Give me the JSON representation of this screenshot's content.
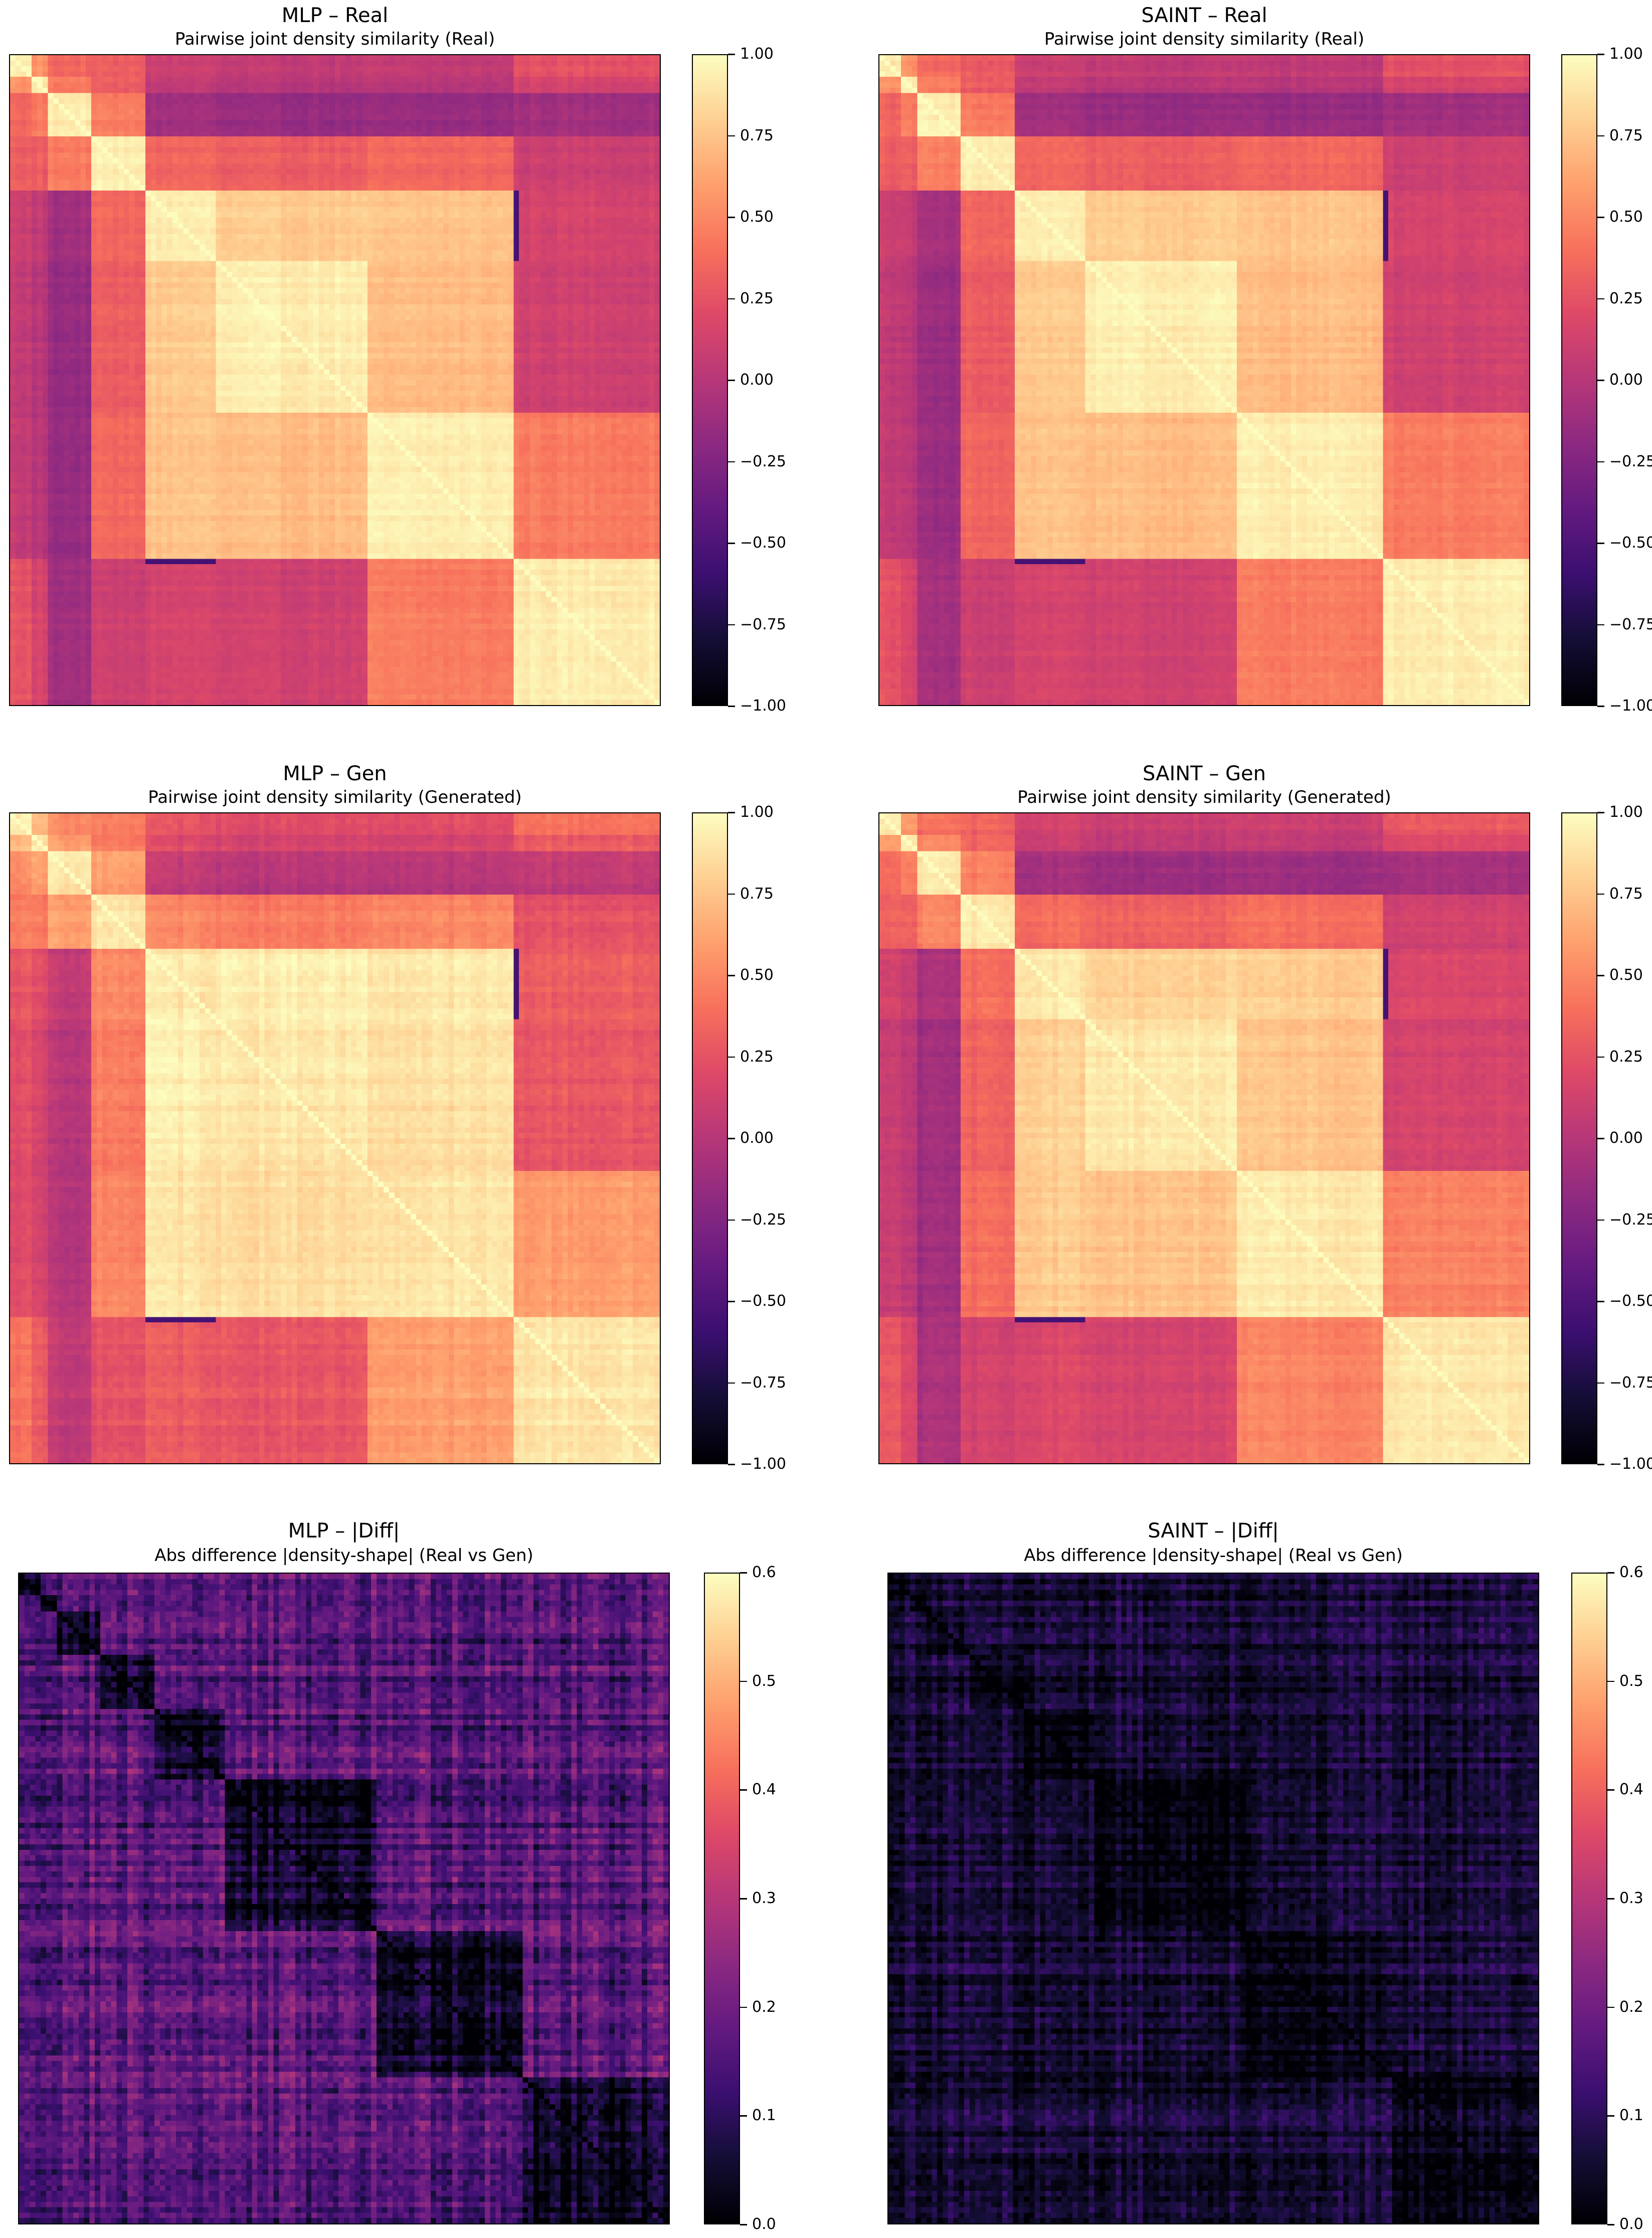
{
  "colormap": "magma",
  "chart_data": [
    {
      "type": "heatmap",
      "id": "mlp-real",
      "suptitle": "MLP – Real",
      "title": "Pairwise joint density similarity (Real)",
      "vmin": -1.0,
      "vmax": 1.0,
      "colorbar_ticks": [
        "1.00",
        "0.75",
        "0.50",
        "0.25",
        "0.00",
        "−0.25",
        "−0.50",
        "−0.75",
        "−1.00"
      ],
      "colorbar_values": [
        1.0,
        0.75,
        0.5,
        0.25,
        0.0,
        -0.25,
        -0.5,
        -0.75,
        -1.0
      ],
      "n_features": 120,
      "block_boundaries": [
        4,
        7,
        15,
        25,
        38,
        66,
        93,
        120
      ],
      "within_block_similarity": 0.93,
      "between_block_similarity": 0.15,
      "noise": 0.08
    },
    {
      "type": "heatmap",
      "id": "saint-real",
      "suptitle": "SAINT – Real",
      "title": "Pairwise joint density similarity (Real)",
      "vmin": -1.0,
      "vmax": 1.0,
      "colorbar_ticks": [
        "1.00",
        "0.75",
        "0.50",
        "0.25",
        "0.00",
        "−0.25",
        "−0.50",
        "−0.75",
        "−1.00"
      ],
      "colorbar_values": [
        1.0,
        0.75,
        0.5,
        0.25,
        0.0,
        -0.25,
        -0.5,
        -0.75,
        -1.0
      ],
      "n_features": 120,
      "block_boundaries": [
        4,
        7,
        15,
        25,
        38,
        66,
        93,
        120
      ],
      "within_block_similarity": 0.93,
      "between_block_similarity": 0.15,
      "noise": 0.08
    },
    {
      "type": "heatmap",
      "id": "mlp-gen",
      "suptitle": "MLP – Gen",
      "title": "Pairwise joint density similarity (Generated)",
      "vmin": -1.0,
      "vmax": 1.0,
      "colorbar_ticks": [
        "1.00",
        "0.75",
        "0.50",
        "0.25",
        "0.00",
        "−0.25",
        "−0.50",
        "−0.75",
        "−1.00"
      ],
      "colorbar_values": [
        1.0,
        0.75,
        0.5,
        0.25,
        0.0,
        -0.25,
        -0.5,
        -0.75,
        -1.0
      ],
      "n_features": 120,
      "block_boundaries": [
        4,
        7,
        15,
        25,
        38,
        66,
        93,
        120
      ],
      "within_block_similarity": 0.9,
      "between_block_similarity": 0.3,
      "noise": 0.1
    },
    {
      "type": "heatmap",
      "id": "saint-gen",
      "suptitle": "SAINT – Gen",
      "title": "Pairwise joint density similarity (Generated)",
      "vmin": -1.0,
      "vmax": 1.0,
      "colorbar_ticks": [
        "1.00",
        "0.75",
        "0.50",
        "0.25",
        "0.00",
        "−0.25",
        "−0.50",
        "−0.75",
        "−1.00"
      ],
      "colorbar_values": [
        1.0,
        0.75,
        0.5,
        0.25,
        0.0,
        -0.25,
        -0.5,
        -0.75,
        -1.0
      ],
      "n_features": 120,
      "block_boundaries": [
        4,
        7,
        15,
        25,
        38,
        66,
        93,
        120
      ],
      "within_block_similarity": 0.91,
      "between_block_similarity": 0.18,
      "noise": 0.09
    },
    {
      "type": "heatmap",
      "id": "mlp-diff",
      "suptitle": "MLP – |Diff|",
      "title": "Abs difference |density-shape| (Real vs Gen)",
      "vmin": 0.0,
      "vmax": 0.6,
      "colorbar_ticks": [
        "0.6",
        "0.5",
        "0.4",
        "0.3",
        "0.2",
        "0.1",
        "0.0"
      ],
      "colorbar_values": [
        0.6,
        0.5,
        0.4,
        0.3,
        0.2,
        0.1,
        0.0
      ],
      "n_features": 120,
      "block_boundaries": [
        4,
        7,
        15,
        25,
        38,
        66,
        93,
        120
      ],
      "within_block_difference": 0.04,
      "between_block_difference": 0.16,
      "noise": 0.1
    },
    {
      "type": "heatmap",
      "id": "saint-diff",
      "suptitle": "SAINT – |Diff|",
      "title": "Abs difference |density-shape| (Real vs Gen)",
      "vmin": 0.0,
      "vmax": 0.6,
      "colorbar_ticks": [
        "0.6",
        "0.5",
        "0.4",
        "0.3",
        "0.2",
        "0.1",
        "0.0"
      ],
      "colorbar_values": [
        0.6,
        0.5,
        0.4,
        0.3,
        0.2,
        0.1,
        0.0
      ],
      "n_features": 120,
      "block_boundaries": [
        4,
        7,
        15,
        25,
        38,
        66,
        93,
        120
      ],
      "within_block_difference": 0.02,
      "between_block_difference": 0.06,
      "noise": 0.07
    }
  ]
}
